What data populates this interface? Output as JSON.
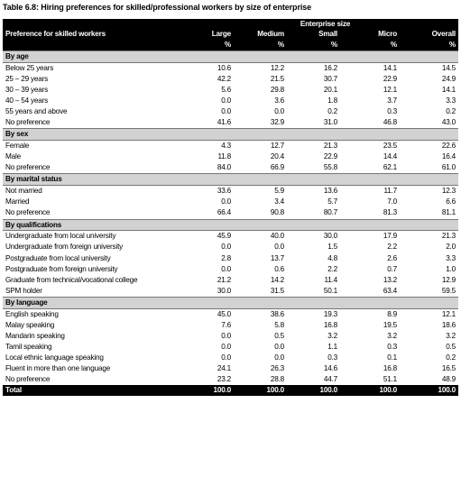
{
  "title": "Table 6.8: Hiring preferences for skilled/professional workers by size of enterprise",
  "header": {
    "group_label": "Enterprise size",
    "row_label": "Preference for skilled workers",
    "columns": [
      "Large",
      "Medium",
      "Small",
      "Micro",
      "Overall"
    ],
    "units": [
      "%",
      "%",
      "%",
      "%",
      "%"
    ]
  },
  "sections": [
    {
      "name": "By age",
      "rows": [
        {
          "label": "Below 25 years",
          "values": [
            "10.6",
            "12.2",
            "16.2",
            "14.1",
            "14.5"
          ]
        },
        {
          "label": "25 – 29 years",
          "values": [
            "42.2",
            "21.5",
            "30.7",
            "22.9",
            "24.9"
          ]
        },
        {
          "label": "30 – 39 years",
          "values": [
            "5.6",
            "29.8",
            "20.1",
            "12.1",
            "14.1"
          ]
        },
        {
          "label": "40 – 54 years",
          "values": [
            "0.0",
            "3.6",
            "1.8",
            "3.7",
            "3.3"
          ]
        },
        {
          "label": "55 years and above",
          "values": [
            "0.0",
            "0.0",
            "0.2",
            "0.3",
            "0.2"
          ]
        },
        {
          "label": "No preference",
          "values": [
            "41.6",
            "32.9",
            "31.0",
            "46.8",
            "43.0"
          ]
        }
      ]
    },
    {
      "name": "By sex",
      "rows": [
        {
          "label": "Female",
          "values": [
            "4.3",
            "12.7",
            "21.3",
            "23.5",
            "22.6"
          ]
        },
        {
          "label": "Male",
          "values": [
            "11.8",
            "20.4",
            "22.9",
            "14.4",
            "16.4"
          ]
        },
        {
          "label": "No preference",
          "values": [
            "84.0",
            "66.9",
            "55.8",
            "62.1",
            "61.0"
          ]
        }
      ]
    },
    {
      "name": "By marital status",
      "rows": [
        {
          "label": "Not married",
          "values": [
            "33.6",
            "5.9",
            "13.6",
            "11.7",
            "12.3"
          ]
        },
        {
          "label": "Married",
          "values": [
            "0.0",
            "3.4",
            "5.7",
            "7.0",
            "6.6"
          ]
        },
        {
          "label": "No preference",
          "values": [
            "66.4",
            "90.8",
            "80.7",
            "81.3",
            "81.1"
          ]
        }
      ]
    },
    {
      "name": "By qualifications",
      "rows": [
        {
          "label": "Undergraduate from local university",
          "values": [
            "45.9",
            "40.0",
            "30.0",
            "17.9",
            "21.3"
          ]
        },
        {
          "label": "Undergraduate from foreign university",
          "values": [
            "0.0",
            "0.0",
            "1.5",
            "2.2",
            "2.0"
          ]
        },
        {
          "label": "Postgraduate from local university",
          "values": [
            "2.8",
            "13.7",
            "4.8",
            "2.6",
            "3.3"
          ]
        },
        {
          "label": "Postgraduate from foreign university",
          "values": [
            "0.0",
            "0.6",
            "2.2",
            "0.7",
            "1.0"
          ]
        },
        {
          "label": "Graduate from technical/vocational college",
          "values": [
            "21.2",
            "14.2",
            "11.4",
            "13.2",
            "12.9"
          ]
        },
        {
          "label": "SPM holder",
          "values": [
            "30.0",
            "31.5",
            "50.1",
            "63.4",
            "59.5"
          ]
        }
      ]
    },
    {
      "name": "By language",
      "rows": [
        {
          "label": "English speaking",
          "values": [
            "45.0",
            "38.6",
            "19.3",
            "8.9",
            "12.1"
          ]
        },
        {
          "label": "Malay speaking",
          "values": [
            "7.6",
            "5.8",
            "16.8",
            "19.5",
            "18.6"
          ]
        },
        {
          "label": "Mandarin speaking",
          "values": [
            "0.0",
            "0.5",
            "3.2",
            "3.2",
            "3.2"
          ]
        },
        {
          "label": "Tamil speaking",
          "values": [
            "0.0",
            "0.0",
            "1.1",
            "0.3",
            "0.5"
          ]
        },
        {
          "label": "Local ethnic language speaking",
          "values": [
            "0.0",
            "0.0",
            "0.3",
            "0.1",
            "0.2"
          ]
        },
        {
          "label": "Fluent in more than one language",
          "values": [
            "24.1",
            "26.3",
            "14.6",
            "16.8",
            "16.5"
          ]
        },
        {
          "label": "No preference",
          "values": [
            "23.2",
            "28.8",
            "44.7",
            "51.1",
            "48.9"
          ]
        }
      ]
    }
  ],
  "total": {
    "label": "Total",
    "values": [
      "100.0",
      "100.0",
      "100.0",
      "100.0",
      "100.0"
    ]
  }
}
